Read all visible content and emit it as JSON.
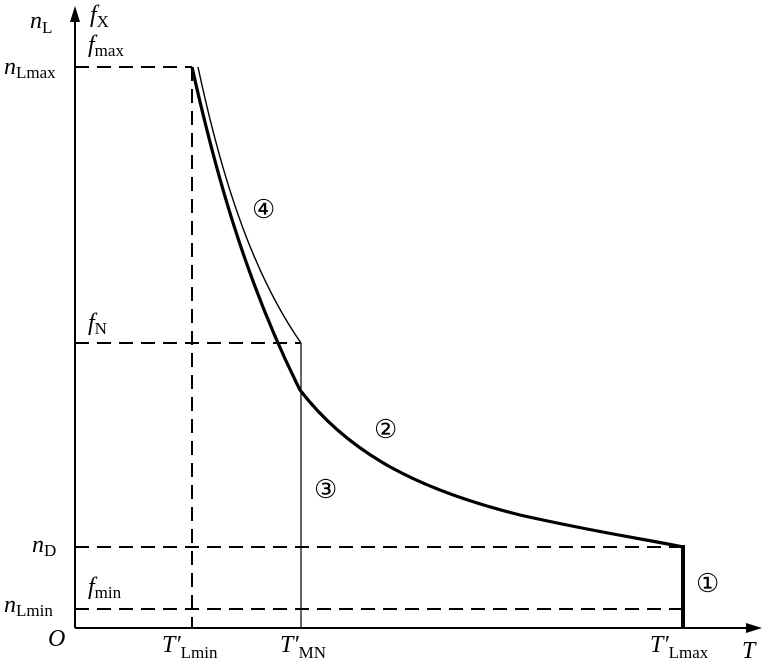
{
  "axes": {
    "y_label": {
      "main": "n",
      "sub": "L"
    },
    "y2_label": {
      "main": "f",
      "sub": "X"
    },
    "x_label": "T",
    "origin": "O"
  },
  "left_labels": [
    {
      "main": "n",
      "sub": "Lmax"
    },
    {
      "main": "n",
      "sub": "D"
    },
    {
      "main": "n",
      "sub": "Lmin"
    }
  ],
  "inner_labels": [
    {
      "main": "f",
      "sub": "max"
    },
    {
      "main": "f",
      "sub": "N"
    },
    {
      "main": "f",
      "sub": "min"
    }
  ],
  "x_labels": [
    {
      "main": "T′",
      "sub": "Lmin"
    },
    {
      "main": "T′",
      "sub": "MN"
    },
    {
      "main": "T′",
      "sub": "Lmax"
    }
  ],
  "curve_labels": [
    "①",
    "②",
    "③",
    "④"
  ]
}
